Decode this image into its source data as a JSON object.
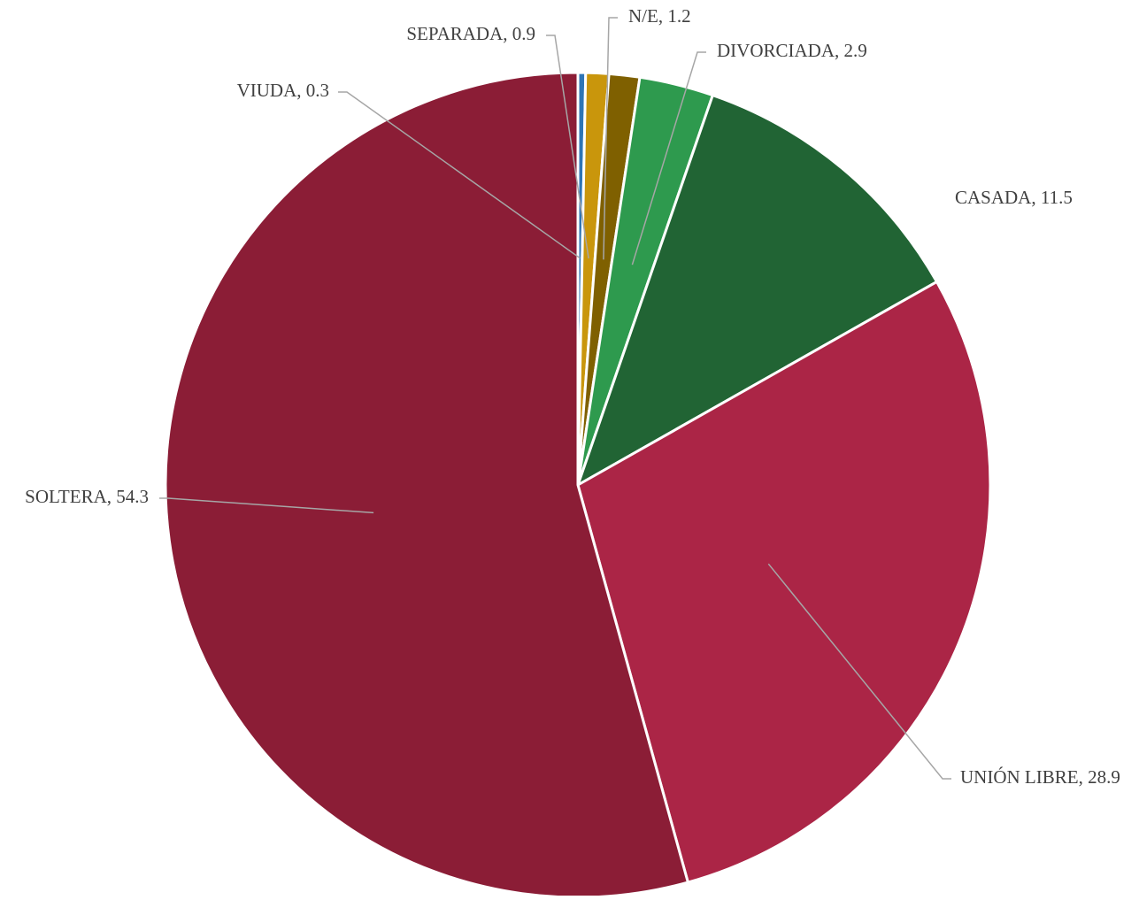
{
  "chart_data": {
    "type": "pie",
    "start_angle_deg": 0,
    "direction": "clockwise",
    "slices": [
      {
        "label": "VIUDA",
        "value": 0.3,
        "display": "VIUDA, 0.3",
        "color": "#2E75B6",
        "label_side": "left"
      },
      {
        "label": "SEPARADA",
        "value": 0.9,
        "display": "SEPARADA, 0.9",
        "color": "#C9960C",
        "label_side": "left"
      },
      {
        "label": "N/E",
        "value": 1.2,
        "display": "N/E, 1.2",
        "color": "#7F6000",
        "label_side": "right"
      },
      {
        "label": "DIVORCIADA",
        "value": 2.9,
        "display": "DIVORCIADA, 2.9",
        "color": "#2E9A4E",
        "label_side": "right"
      },
      {
        "label": "CASADA",
        "value": 11.5,
        "display": "CASADA, 11.5",
        "color": "#216434",
        "label_side": "left"
      },
      {
        "label": "UNIÓN LIBRE",
        "value": 28.9,
        "display": "UNIÓN LIBRE, 28.9",
        "color": "#AB2546",
        "label_side": "left"
      },
      {
        "label": "SOLTERA",
        "value": 54.3,
        "display": "SOLTERA, 54.3",
        "color": "#8B1D36",
        "label_side": "right"
      }
    ],
    "legend": "none",
    "slice_border_color": "#FFFFFF",
    "leader_line_color": "#A6A6A6"
  }
}
